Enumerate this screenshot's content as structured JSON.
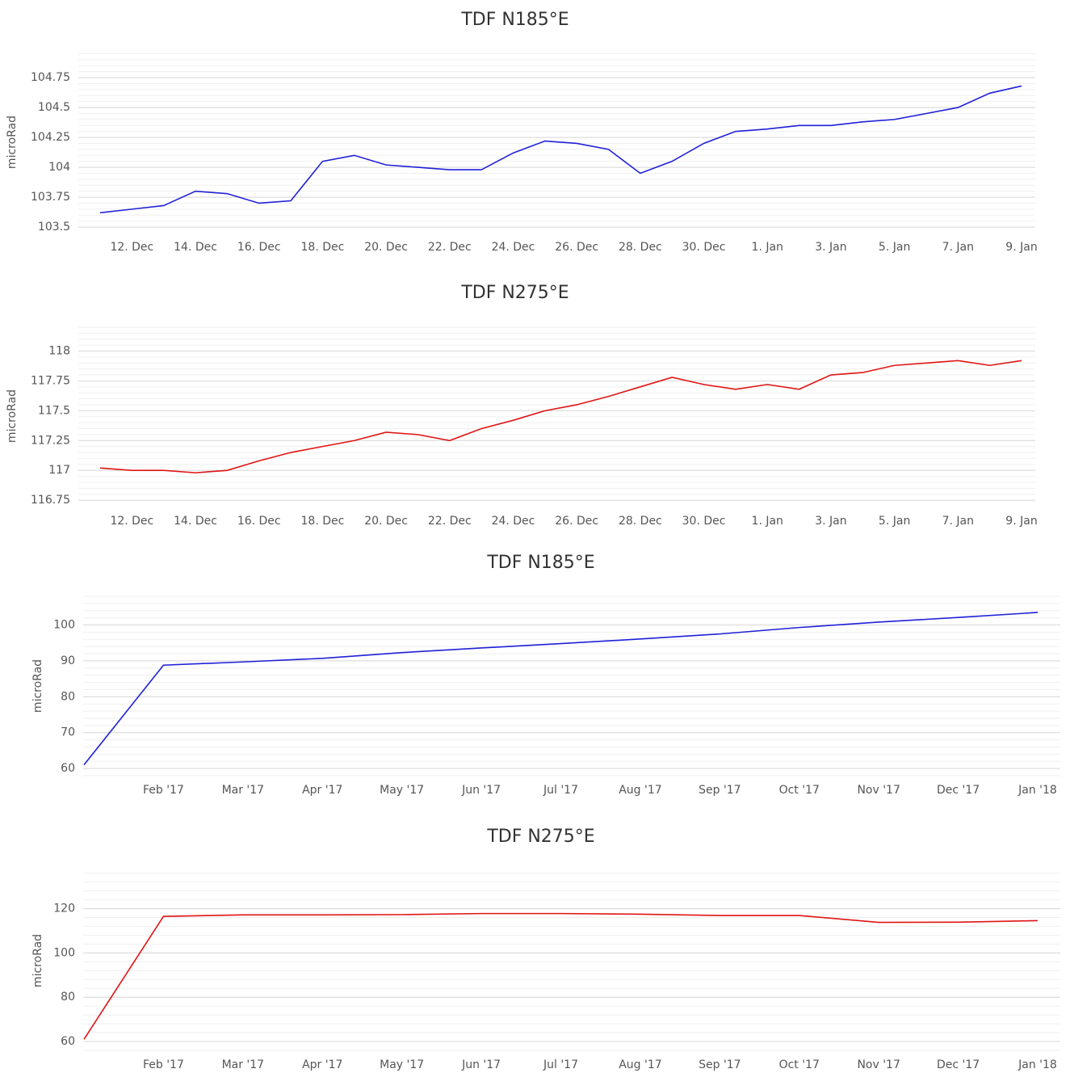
{
  "chart_data": [
    {
      "type": "line",
      "title": "TDF N185°E",
      "y_label": "microRad",
      "x": [
        "11. Dec",
        "12. Dec",
        "13. Dec",
        "14. Dec",
        "15. Dec",
        "16. Dec",
        "17. Dec",
        "18. Dec",
        "19. Dec",
        "20. Dec",
        "21. Dec",
        "22. Dec",
        "23. Dec",
        "24. Dec",
        "25. Dec",
        "26. Dec",
        "27. Dec",
        "28. Dec",
        "29. Dec",
        "30. Dec",
        "31. Dec",
        "1. Jan",
        "2. Jan",
        "3. Jan",
        "4. Jan",
        "5. Jan",
        "6. Jan",
        "7. Jan",
        "8. Jan",
        "9. Jan"
      ],
      "series": [
        {
          "name": "TDF N185°E",
          "color": "#2020d8",
          "values": [
            103.62,
            103.65,
            103.68,
            103.8,
            103.78,
            103.7,
            103.72,
            104.05,
            104.1,
            104.02,
            104.0,
            103.98,
            103.98,
            104.12,
            104.22,
            104.2,
            104.15,
            103.95,
            104.05,
            104.2,
            104.3,
            104.32,
            104.35,
            104.35,
            104.38,
            104.4,
            104.45,
            104.5,
            104.62,
            104.68
          ]
        }
      ],
      "xticks": [
        "12. Dec",
        "14. Dec",
        "16. Dec",
        "18. Dec",
        "20. Dec",
        "22. Dec",
        "24. Dec",
        "26. Dec",
        "28. Dec",
        "30. Dec",
        "1. Jan",
        "3. Jan",
        "5. Jan",
        "7. Jan",
        "9. Jan"
      ],
      "ylim": [
        103.46,
        104.96
      ],
      "yticks": [
        103.5,
        103.75,
        104,
        104.25,
        104.5,
        104.75
      ],
      "grid": true,
      "minor_grid": true
    },
    {
      "type": "line",
      "title": "TDF N275°E",
      "y_label": "microRad",
      "x": [
        "11. Dec",
        "12. Dec",
        "13. Dec",
        "14. Dec",
        "15. Dec",
        "16. Dec",
        "17. Dec",
        "18. Dec",
        "19. Dec",
        "20. Dec",
        "21. Dec",
        "22. Dec",
        "23. Dec",
        "24. Dec",
        "25. Dec",
        "26. Dec",
        "27. Dec",
        "28. Dec",
        "29. Dec",
        "30. Dec",
        "31. Dec",
        "1. Jan",
        "2. Jan",
        "3. Jan",
        "4. Jan",
        "5. Jan",
        "6. Jan",
        "7. Jan",
        "8. Jan",
        "9. Jan"
      ],
      "series": [
        {
          "name": "TDF N275°E",
          "color": "#e01414",
          "values": [
            117.02,
            117.0,
            117.0,
            116.98,
            117.0,
            117.08,
            117.15,
            117.2,
            117.25,
            117.32,
            117.3,
            117.25,
            117.35,
            117.42,
            117.5,
            117.55,
            117.62,
            117.7,
            117.78,
            117.72,
            117.68,
            117.72,
            117.68,
            117.8,
            117.82,
            117.88,
            117.9,
            117.92,
            117.88,
            117.92
          ]
        }
      ],
      "xticks": [
        "12. Dec",
        "14. Dec",
        "16. Dec",
        "18. Dec",
        "20. Dec",
        "22. Dec",
        "24. Dec",
        "26. Dec",
        "28. Dec",
        "30. Dec",
        "1. Jan",
        "3. Jan",
        "5. Jan",
        "7. Jan",
        "9. Jan"
      ],
      "ylim": [
        116.71,
        118.2
      ],
      "yticks": [
        116.75,
        117,
        117.25,
        117.5,
        117.75,
        118
      ],
      "grid": true,
      "minor_grid": true
    },
    {
      "type": "line",
      "title": "TDF N185°E",
      "y_label": "microRad",
      "x": [
        "Jan '17",
        "Feb '17",
        "Mar '17",
        "Apr '17",
        "May '17",
        "Jun '17",
        "Jul '17",
        "Aug '17",
        "Sep '17",
        "Oct '17",
        "Nov '17",
        "Dec '17",
        "Jan '18"
      ],
      "series": [
        {
          "name": "TDF N185°E",
          "color": "#2020d8",
          "values": [
            61,
            88.8,
            89.7,
            90.7,
            92.3,
            93.6,
            94.8,
            96.1,
            97.5,
            99.3,
            100.8,
            102.1,
            103.5
          ]
        }
      ],
      "xticks": [
        "Feb '17",
        "Mar '17",
        "Apr '17",
        "May '17",
        "Jun '17",
        "Jul '17",
        "Aug '17",
        "Sep '17",
        "Oct '17",
        "Nov '17",
        "Dec '17",
        "Jan '18"
      ],
      "ylim": [
        58,
        108
      ],
      "yticks": [
        60,
        70,
        80,
        90,
        100
      ],
      "grid": true,
      "minor_grid": true
    },
    {
      "type": "line",
      "title": "TDF N275°E",
      "y_label": "microRad",
      "x": [
        "Jan '17",
        "Feb '17",
        "Mar '17",
        "Apr '17",
        "May '17",
        "Jun '17",
        "Jul '17",
        "Aug '17",
        "Sep '17",
        "Oct '17",
        "Nov '17",
        "Dec '17",
        "Jan '18"
      ],
      "series": [
        {
          "name": "TDF N275°E",
          "color": "#e01414",
          "values": [
            61,
            116.5,
            117.2,
            117.2,
            117.3,
            117.8,
            117.8,
            117.5,
            116.9,
            116.9,
            113.8,
            113.9,
            114.6
          ]
        }
      ],
      "xticks": [
        "Feb '17",
        "Mar '17",
        "Apr '17",
        "May '17",
        "Jun '17",
        "Jul '17",
        "Aug '17",
        "Sep '17",
        "Oct '17",
        "Nov '17",
        "Dec '17",
        "Jan '18"
      ],
      "ylim": [
        56,
        137
      ],
      "yticks": [
        60,
        80,
        100,
        120
      ],
      "grid": true,
      "minor_grid": true
    }
  ]
}
